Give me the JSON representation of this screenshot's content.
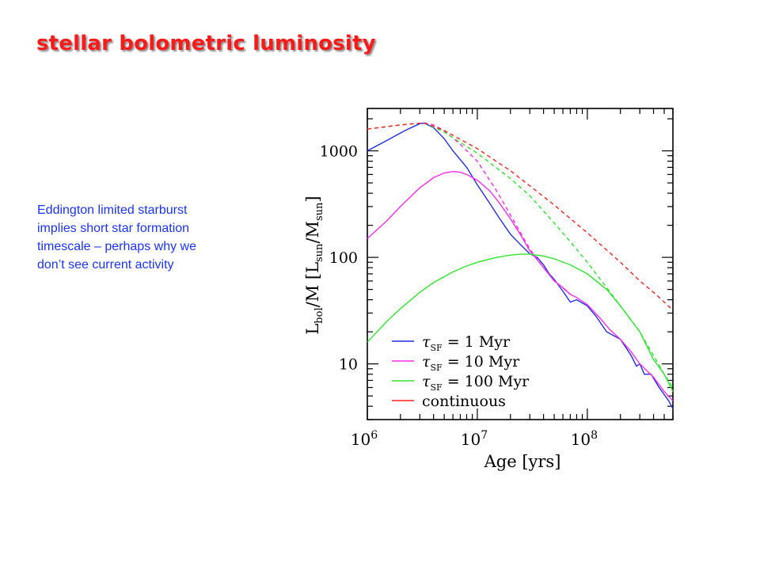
{
  "slide": {
    "title": "stellar bolometric luminosity",
    "body_lines": [
      "Eddington limited starburst",
      "implies short star formation",
      "timescale – perhaps why we",
      "don’t see current activity"
    ]
  },
  "colors": {
    "title": "#ff1a1a",
    "body_text": "#1a33ff",
    "tau1": "#1f2fe8",
    "tau10": "#ff2cf0",
    "tau100": "#2ee62e",
    "continuous": "#ff2222"
  },
  "chart_data": {
    "type": "line",
    "title": "",
    "xlabel": "Age [yrs]",
    "ylabel": "L_bol/M [L_sun/M_sun]",
    "xscale": "log",
    "yscale": "log",
    "xlim": [
      1000000,
      600000000
    ],
    "ylim": [
      3,
      2500
    ],
    "x_ticks": [
      {
        "value": 1000000,
        "base": "10",
        "exp": "6"
      },
      {
        "value": 10000000,
        "base": "10",
        "exp": "7"
      },
      {
        "value": 100000000,
        "base": "10",
        "exp": "8"
      }
    ],
    "y_ticks": [
      {
        "value": 10,
        "label": "10"
      },
      {
        "value": 100,
        "label": "100"
      },
      {
        "value": 1000,
        "label": "1000"
      }
    ],
    "legend_position": "bottom-left",
    "series": [
      {
        "key": "tau1",
        "style": "solid",
        "legend": {
          "tau": "τ",
          "sub": "SF",
          "rest": "= 1 Myr"
        },
        "x": [
          1000000,
          1500000,
          2200000,
          3000000,
          3300000,
          4000000,
          5000000,
          6000000,
          8000000,
          10000000,
          13000000,
          16000000,
          20000000,
          25000000,
          30000000,
          35000000,
          40000000,
          45000000,
          50000000,
          60000000,
          70000000,
          80000000,
          100000000,
          120000000,
          150000000,
          200000000,
          250000000,
          280000000,
          300000000,
          330000000,
          380000000,
          450000000,
          550000000,
          600000000
        ],
        "y": [
          1000,
          1250,
          1550,
          1800,
          1820,
          1650,
          1300,
          1000,
          700,
          480,
          320,
          230,
          165,
          130,
          108,
          100,
          85,
          70,
          62,
          48,
          38,
          40,
          35,
          28,
          20,
          17,
          12,
          9.5,
          10,
          8,
          8,
          6,
          4.5,
          3.8
        ]
      },
      {
        "key": "tau10",
        "style": "solid",
        "legend": {
          "tau": "τ",
          "sub": "SF",
          "rest": "= 10 Myr"
        },
        "x": [
          1000000,
          1500000,
          2000000,
          3000000,
          4000000,
          5000000,
          6000000,
          7000000,
          8000000,
          10000000,
          13000000,
          16000000,
          20000000,
          25000000,
          30000000,
          35000000,
          40000000,
          50000000,
          60000000,
          70000000,
          80000000,
          100000000,
          130000000,
          160000000,
          200000000,
          250000000,
          300000000,
          400000000,
          500000000,
          600000000
        ],
        "y": [
          150,
          220,
          300,
          450,
          560,
          620,
          640,
          630,
          600,
          530,
          420,
          320,
          230,
          160,
          115,
          95,
          80,
          60,
          52,
          45,
          42,
          36,
          27,
          21,
          17,
          13,
          10,
          7.5,
          5.5,
          4.5
        ]
      },
      {
        "key": "tau100",
        "style": "solid",
        "legend": {
          "tau": "τ",
          "sub": "SF",
          "rest": "= 100 Myr"
        },
        "x": [
          1000000,
          1500000,
          2000000,
          3000000,
          4000000,
          6000000,
          8000000,
          10000000,
          15000000,
          20000000,
          25000000,
          30000000,
          40000000,
          50000000,
          70000000,
          100000000,
          150000000,
          200000000,
          300000000,
          400000000,
          500000000,
          600000000
        ],
        "y": [
          16,
          25,
          33,
          47,
          58,
          73,
          83,
          90,
          100,
          105,
          107,
          107,
          103,
          97,
          85,
          70,
          50,
          35,
          20,
          11,
          8,
          5.5
        ]
      },
      {
        "key": "tau10_dashed",
        "style": "dashed",
        "color_key": "tau10",
        "x": [
          1000000,
          2000000,
          3000000,
          3300000,
          4000000,
          5000000,
          7000000,
          10000000,
          15000000,
          20000000,
          30000000,
          40000000,
          50000000,
          70000000
        ],
        "y": [
          1600,
          1750,
          1820,
          1830,
          1750,
          1550,
          1150,
          800,
          420,
          250,
          120,
          80,
          60,
          45
        ]
      },
      {
        "key": "tau100_dashed",
        "style": "dashed",
        "color_key": "tau100",
        "x": [
          1000000,
          2000000,
          3000000,
          3300000,
          5000000,
          10000000,
          20000000,
          30000000,
          50000000,
          70000000,
          100000000,
          150000000,
          200000000,
          300000000,
          400000000,
          500000000,
          600000000
        ],
        "y": [
          1600,
          1750,
          1820,
          1830,
          1500,
          950,
          550,
          380,
          210,
          140,
          90,
          52,
          35,
          20,
          12,
          8,
          6
        ]
      },
      {
        "key": "continuous",
        "style": "dashed",
        "legend": {
          "tau": "",
          "sub": "",
          "rest": "continuous"
        },
        "x": [
          1000000,
          2000000,
          3000000,
          3300000,
          5000000,
          10000000,
          20000000,
          30000000,
          50000000,
          100000000,
          200000000,
          300000000,
          400000000,
          500000000,
          600000000
        ],
        "y": [
          1600,
          1750,
          1820,
          1830,
          1550,
          1050,
          650,
          470,
          310,
          170,
          90,
          60,
          47,
          38,
          32
        ]
      }
    ]
  }
}
